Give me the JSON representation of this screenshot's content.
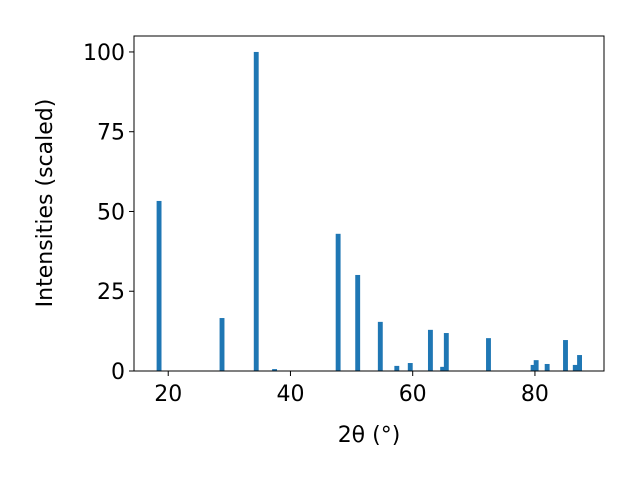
{
  "chart_data": {
    "type": "bar",
    "x": [
      18.5,
      28.8,
      34.4,
      37.4,
      47.8,
      51.0,
      54.7,
      57.4,
      59.6,
      62.9,
      64.9,
      65.5,
      72.4,
      79.7,
      80.2,
      82.0,
      85.0,
      86.6,
      87.3
    ],
    "values": [
      53.3,
      16.6,
      100,
      0.6,
      43,
      30.1,
      15.4,
      1.6,
      2.5,
      12.9,
      1.3,
      11.9,
      10.3,
      1.9,
      3.4,
      2.2,
      9.7,
      1.9,
      5.0
    ],
    "color": "#1f77b4",
    "xlabel": "2θ (°)",
    "ylabel": "Intensities (scaled)",
    "xlim": [
      14.4,
      91.3
    ],
    "xticks": [
      20,
      40,
      60,
      80
    ],
    "ylim": [
      0,
      105
    ],
    "yticks": [
      0,
      25,
      50,
      75,
      100
    ],
    "grid": false
  }
}
